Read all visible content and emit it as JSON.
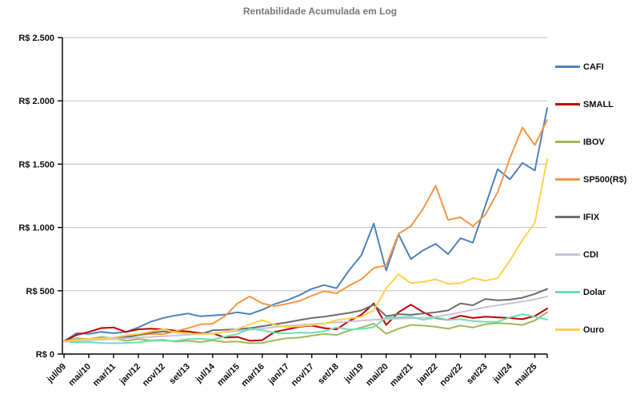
{
  "title": "Rentabilidade Acumulada em Log",
  "y_axis": {
    "tick_values": [
      0,
      500,
      1000,
      1500,
      2000,
      2500
    ],
    "tick_labels": [
      "R$ 0",
      "R$ 500",
      "R$ 1.000",
      "R$ 1.500",
      "R$ 2.000",
      "R$ 2.500"
    ],
    "max": 2500
  },
  "x_axis": {
    "tick_labels": [
      "jul/09",
      "mai/10",
      "mar/11",
      "jan/12",
      "nov/12",
      "set/13",
      "jul/14",
      "mai/15",
      "mar/16",
      "jan/17",
      "nov/17",
      "set/18",
      "jul/19",
      "mai/20",
      "mar/21",
      "jan/22",
      "nov/22",
      "set/23",
      "jul/24",
      "mai/25"
    ]
  },
  "colors": {
    "title": "#777777",
    "gridline": "#bfbfbf",
    "axis": "#000000",
    "label": "#0d0d0d"
  },
  "chart_data": {
    "type": "line",
    "title": "Rentabilidade Acumulada em Log",
    "ylabel": "",
    "xlabel": "",
    "ylim": [
      0,
      2500
    ],
    "grid": "horizontal",
    "legend_position": "right",
    "x": [
      "jul/09",
      "dez/09",
      "mai/10",
      "out/10",
      "mar/11",
      "ago/11",
      "jan/12",
      "jun/12",
      "nov/12",
      "abr/13",
      "set/13",
      "fev/14",
      "jul/14",
      "dez/14",
      "mai/15",
      "out/15",
      "mar/16",
      "ago/16",
      "jan/17",
      "jun/17",
      "nov/17",
      "abr/18",
      "set/18",
      "fev/19",
      "jul/19",
      "dez/19",
      "mai/20",
      "out/20",
      "mar/21",
      "ago/21",
      "jan/22",
      "jun/22",
      "nov/22",
      "abr/23",
      "set/23",
      "fev/24",
      "jul/24",
      "dez/24",
      "mai/25",
      "out/25"
    ],
    "x_tick_indices": [
      0,
      2,
      4,
      6,
      8,
      10,
      12,
      14,
      16,
      18,
      20,
      22,
      24,
      26,
      28,
      30,
      32,
      34,
      36,
      38
    ],
    "series": [
      {
        "name": "CAFI",
        "color": "#4F81BD",
        "values": [
          100,
          165,
          160,
          175,
          165,
          175,
          210,
          255,
          285,
          305,
          320,
          298,
          305,
          312,
          330,
          315,
          350,
          395,
          425,
          465,
          515,
          545,
          520,
          660,
          780,
          1030,
          660,
          945,
          750,
          820,
          870,
          790,
          915,
          880,
          1170,
          1460,
          1380,
          1510,
          1450,
          1944
        ]
      },
      {
        "name": "SMALL",
        "color": "#C00000",
        "values": [
          100,
          150,
          175,
          205,
          210,
          175,
          195,
          200,
          195,
          185,
          178,
          165,
          165,
          130,
          135,
          105,
          110,
          175,
          195,
          215,
          225,
          205,
          195,
          260,
          310,
          400,
          230,
          330,
          390,
          330,
          285,
          270,
          303,
          285,
          295,
          290,
          285,
          275,
          300,
          360
        ]
      },
      {
        "name": "IBOV",
        "color": "#9BBB59",
        "values": [
          100,
          125,
          118,
          135,
          125,
          105,
          118,
          108,
          112,
          98,
          105,
          95,
          108,
          95,
          100,
          85,
          88,
          108,
          125,
          130,
          145,
          160,
          150,
          185,
          210,
          240,
          160,
          200,
          230,
          225,
          215,
          200,
          225,
          210,
          235,
          245,
          240,
          230,
          265,
          330
        ]
      },
      {
        "name": "SP500(R$)",
        "color": "#F79646",
        "values": [
          100,
          108,
          115,
          120,
          118,
          130,
          150,
          160,
          157,
          180,
          204,
          235,
          240,
          300,
          400,
          455,
          400,
          378,
          397,
          420,
          460,
          497,
          480,
          540,
          590,
          680,
          700,
          950,
          1010,
          1150,
          1330,
          1060,
          1080,
          1010,
          1100,
          1280,
          1550,
          1790,
          1650,
          1850
        ]
      },
      {
        "name": "IFIX",
        "color": "#6E6E6E",
        "values": [
          100,
          105,
          112,
          120,
          128,
          135,
          150,
          168,
          178,
          172,
          162,
          158,
          188,
          192,
          196,
          205,
          220,
          235,
          250,
          268,
          285,
          295,
          310,
          325,
          345,
          390,
          300,
          315,
          310,
          320,
          330,
          345,
          400,
          385,
          435,
          425,
          430,
          445,
          475,
          515
        ]
      },
      {
        "name": "CDI",
        "color": "#CCC1DA",
        "values": [
          100,
          104,
          108,
          113,
          119,
          125,
          131,
          136,
          141,
          146,
          152,
          158,
          165,
          172,
          181,
          191,
          202,
          213,
          222,
          230,
          237,
          243,
          250,
          257,
          264,
          271,
          276,
          279,
          282,
          287,
          296,
          310,
          330,
          350,
          370,
          385,
          400,
          415,
          432,
          455
        ]
      },
      {
        "name": "Dolar",
        "color": "#6FDFB8",
        "values": [
          100,
          92,
          94,
          88,
          85,
          88,
          92,
          105,
          106,
          104,
          118,
          120,
          115,
          138,
          158,
          200,
          188,
          168,
          163,
          170,
          168,
          180,
          210,
          195,
          198,
          212,
          290,
          290,
          295,
          270,
          290,
          270,
          275,
          260,
          255,
          255,
          290,
          315,
          295,
          272
        ]
      },
      {
        "name": "Ouro",
        "color": "#FFD24D",
        "values": [
          100,
          110,
          119,
          122,
          130,
          148,
          159,
          178,
          196,
          170,
          162,
          158,
          160,
          175,
          198,
          235,
          269,
          230,
          212,
          220,
          229,
          240,
          268,
          280,
          294,
          344,
          520,
          630,
          560,
          570,
          590,
          555,
          560,
          600,
          580,
          600,
          740,
          900,
          1037,
          1540
        ]
      }
    ]
  }
}
